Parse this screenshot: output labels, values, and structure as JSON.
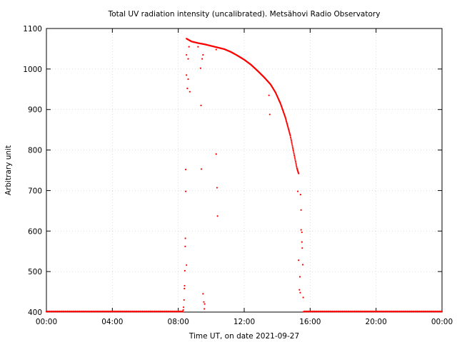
{
  "chart_data": {
    "type": "scatter",
    "title": "Total UV radiation intensity (uncalibrated). Metsähovi Radio Observatory",
    "xlabel": "Time UT, on date 2021-09-27",
    "ylabel": "Arbitrary unit",
    "xlim": [
      0,
      24
    ],
    "ylim": [
      400,
      1100
    ],
    "xticks": [
      0,
      4,
      8,
      12,
      16,
      20,
      24
    ],
    "xtick_labels": [
      "00:00",
      "04:00",
      "08:00",
      "12:00",
      "16:00",
      "20:00",
      "00:00"
    ],
    "yticks": [
      400,
      500,
      600,
      700,
      800,
      900,
      1000,
      1100
    ],
    "ytick_labels": [
      "400",
      "500",
      "600",
      "700",
      "800",
      "900",
      "1000",
      "1100"
    ],
    "grid": true,
    "legend": "none",
    "marker_color": "#ff0000",
    "series": [
      {
        "curve": [
          [
            8.5,
            1075
          ],
          [
            8.8,
            1068
          ],
          [
            9.2,
            1064
          ],
          [
            9.6,
            1061
          ],
          [
            10.0,
            1057
          ],
          [
            10.4,
            1053
          ],
          [
            10.8,
            1049
          ],
          [
            11.2,
            1042
          ],
          [
            11.6,
            1033
          ],
          [
            12.0,
            1023
          ],
          [
            12.4,
            1011
          ],
          [
            12.8,
            996
          ],
          [
            13.2,
            980
          ],
          [
            13.6,
            962
          ],
          [
            13.9,
            942
          ],
          [
            14.2,
            915
          ],
          [
            14.5,
            880
          ],
          [
            14.8,
            835
          ],
          [
            15.0,
            795
          ],
          [
            15.2,
            755
          ],
          [
            15.3,
            742
          ]
        ],
        "scatter_points": [
          [
            8.3,
            405
          ],
          [
            8.32,
            412
          ],
          [
            8.35,
            430
          ],
          [
            8.37,
            458
          ],
          [
            8.38,
            465
          ],
          [
            8.4,
            502
          ],
          [
            8.42,
            562
          ],
          [
            8.43,
            582
          ],
          [
            8.45,
            698
          ],
          [
            8.45,
            752
          ],
          [
            8.5,
            985
          ],
          [
            8.5,
            1035
          ],
          [
            8.55,
            952
          ],
          [
            8.6,
            975
          ],
          [
            8.6,
            1025
          ],
          [
            8.65,
            1055
          ],
          [
            8.7,
            944
          ],
          [
            8.5,
            516
          ],
          [
            9.35,
            1002
          ],
          [
            9.38,
            910
          ],
          [
            9.4,
            753
          ],
          [
            9.45,
            1025
          ],
          [
            9.5,
            1035
          ],
          [
            9.5,
            445
          ],
          [
            9.55,
            425
          ],
          [
            9.58,
            408
          ],
          [
            9.6,
            420
          ],
          [
            9.2,
            1055
          ],
          [
            10.3,
            790
          ],
          [
            10.35,
            707
          ],
          [
            10.38,
            637
          ],
          [
            10.3,
            1048
          ],
          [
            13.5,
            935
          ],
          [
            13.55,
            888
          ],
          [
            15.25,
            698
          ],
          [
            15.3,
            528
          ],
          [
            15.35,
            455
          ],
          [
            15.38,
            487
          ],
          [
            15.4,
            448
          ],
          [
            15.42,
            690
          ],
          [
            15.45,
            652
          ],
          [
            15.45,
            603
          ],
          [
            15.5,
            597
          ],
          [
            15.5,
            573
          ],
          [
            15.52,
            558
          ],
          [
            15.55,
            517
          ],
          [
            15.58,
            436
          ]
        ],
        "baseline_value": 401,
        "baseline_ranges": [
          [
            0,
            8.3
          ],
          [
            15.6,
            24
          ]
        ]
      }
    ]
  }
}
